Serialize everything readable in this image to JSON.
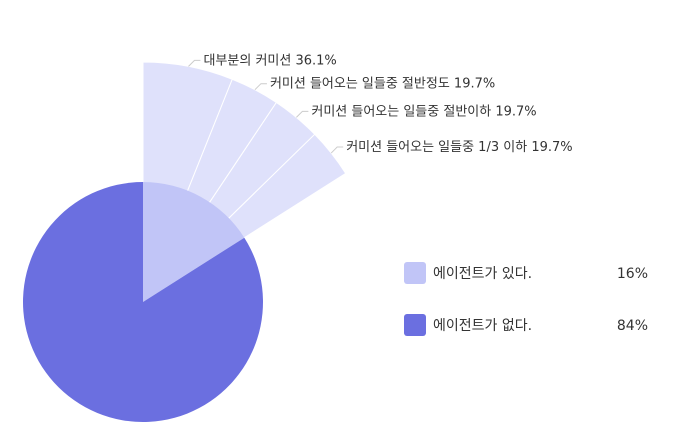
{
  "chart_data": {
    "type": "pie",
    "title": "",
    "slices": [
      {
        "label": "에이전트가 있다.",
        "value": 16,
        "value_label": "16%",
        "color": "#c1c5f7"
      },
      {
        "label": "에이전트가 없다.",
        "value": 84,
        "value_label": "84%",
        "color": "#6b6fe0"
      }
    ],
    "breakdown": {
      "of_slice": "에이전트가 있다.",
      "color": "#dfe1fb",
      "divider_color": "#ffffff",
      "items": [
        {
          "label": "대부분의 커미션",
          "value": 36.1,
          "value_label": "36.1%"
        },
        {
          "label": "커미션 들어오는 일들중 절반정도",
          "value": 19.7,
          "value_label": "19.7%"
        },
        {
          "label": "커미션 들어오는 일들중 절반이하",
          "value": 19.7,
          "value_label": "19.7%"
        },
        {
          "label": "커미션 들어오는 일들중 1/3 이하",
          "value": 19.7,
          "value_label": "19.7%"
        }
      ]
    },
    "legend_position": "right"
  }
}
